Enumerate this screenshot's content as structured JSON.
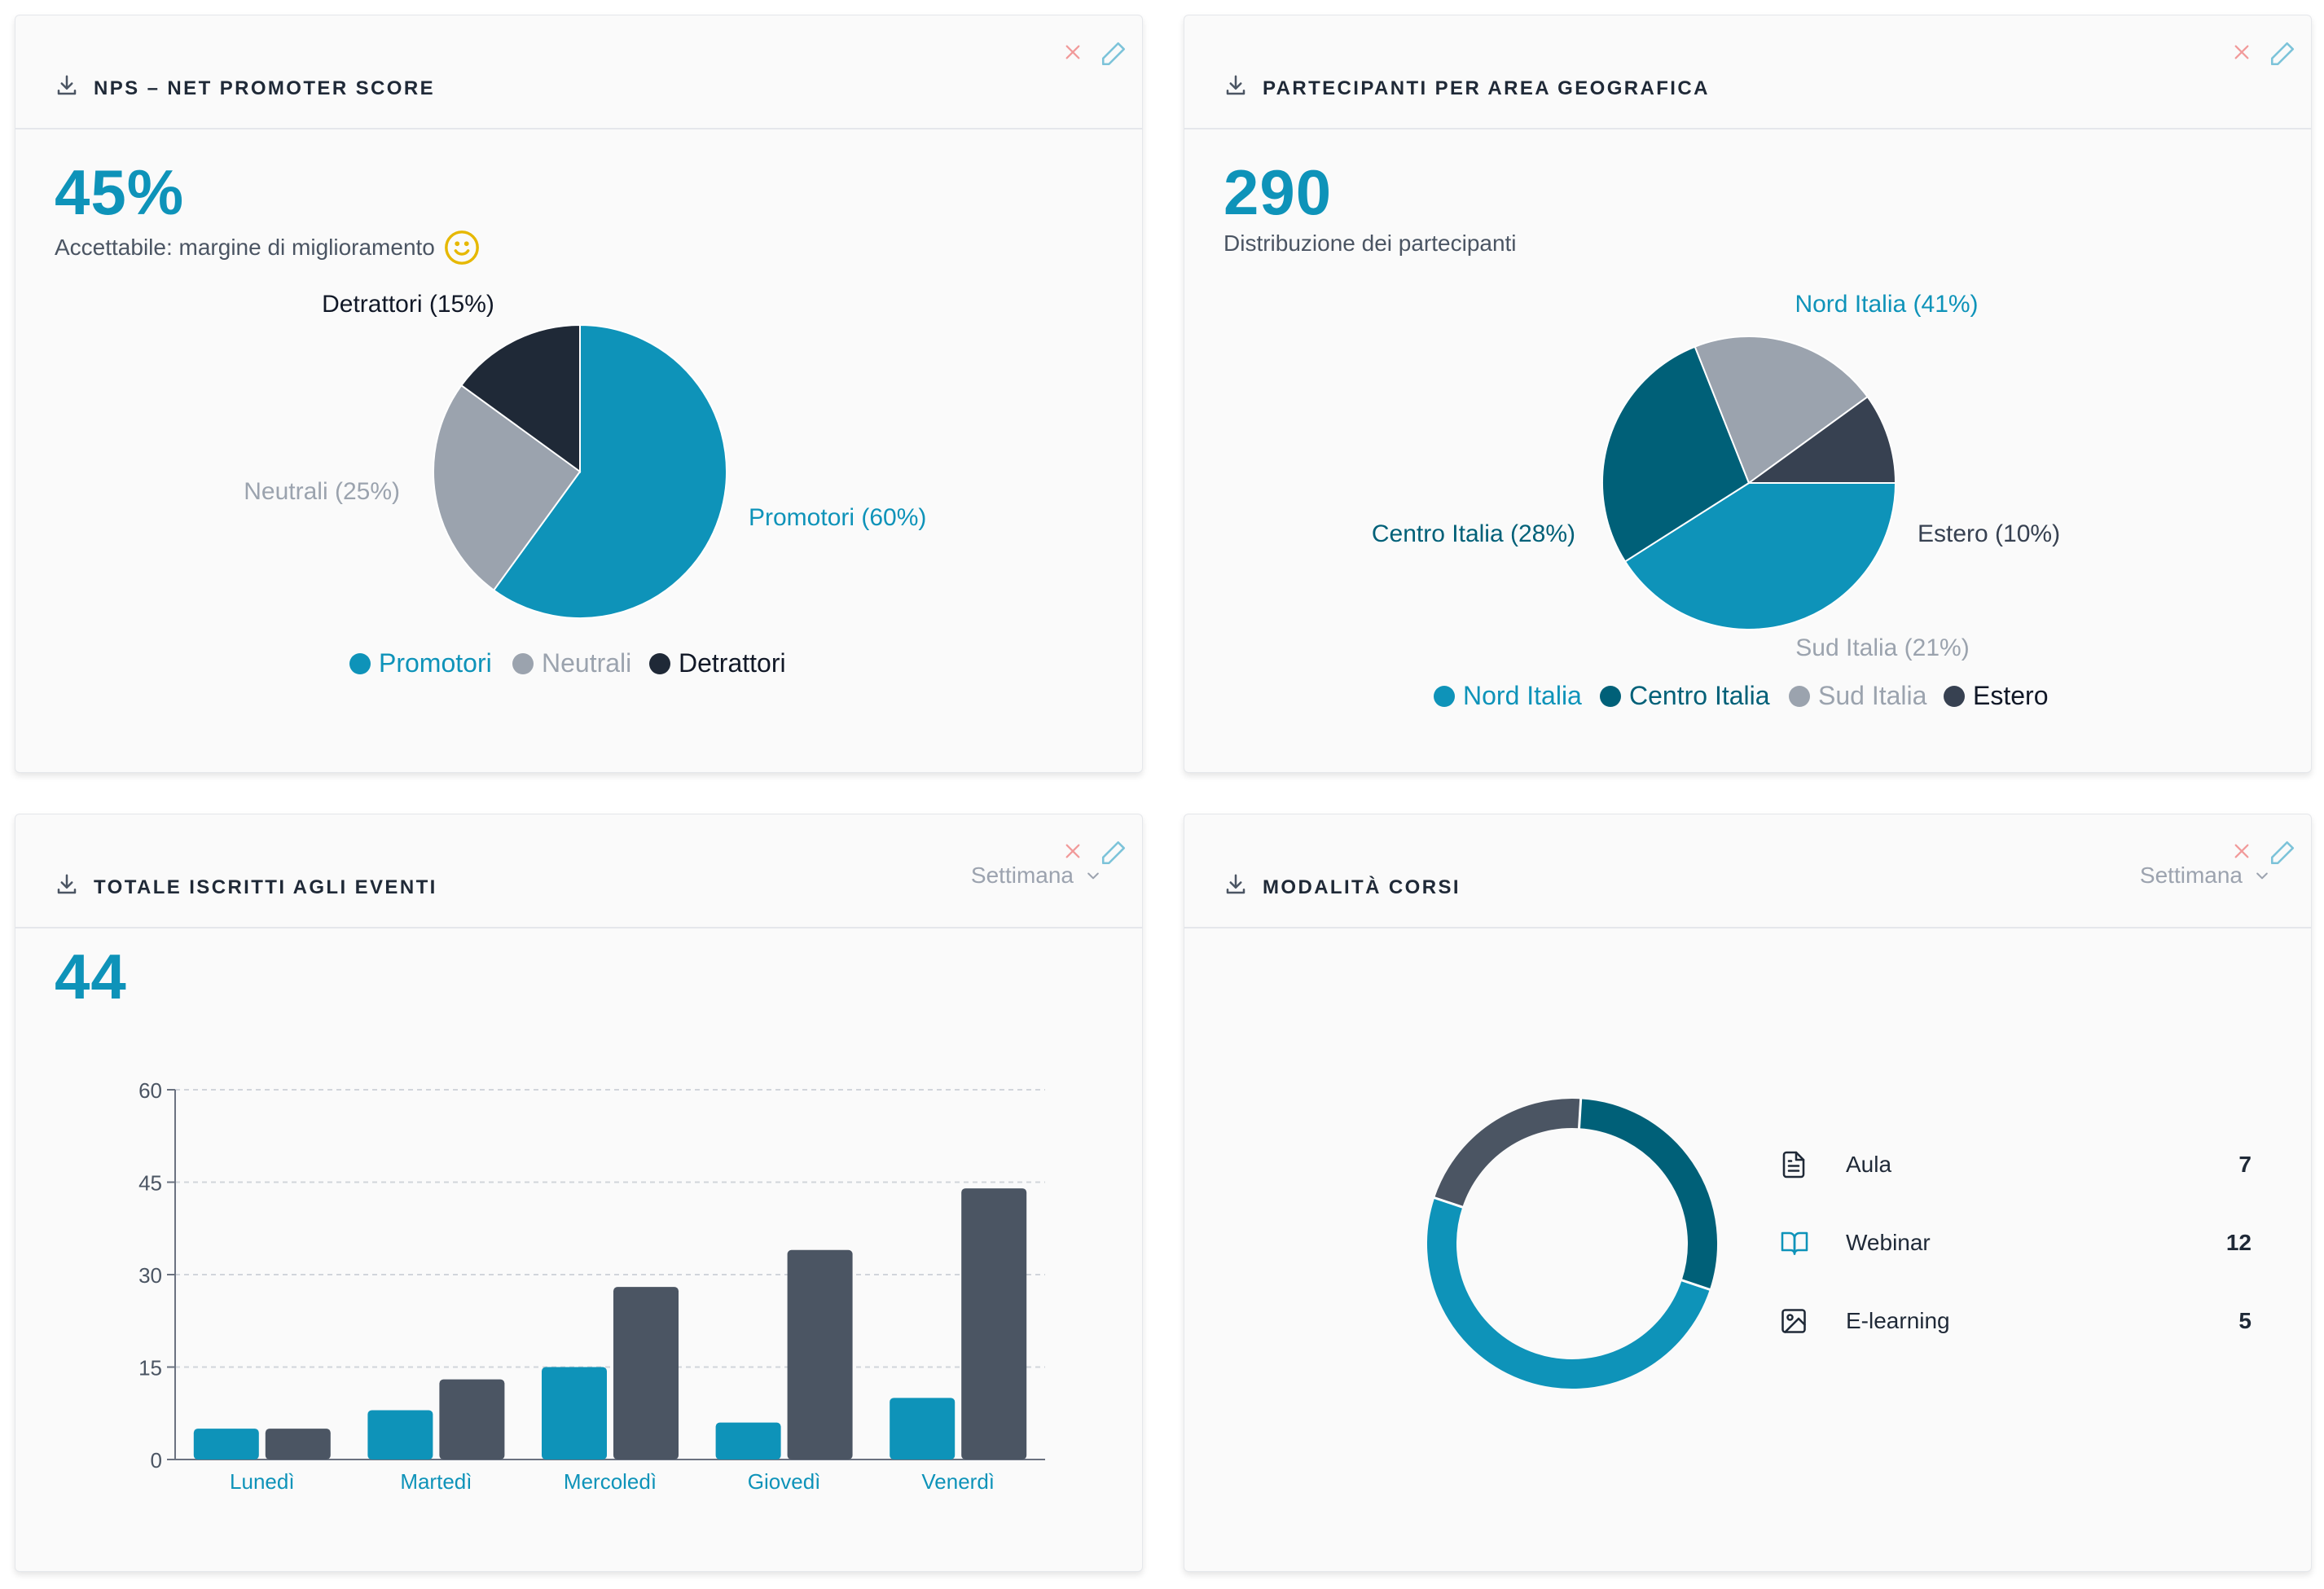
{
  "colors": {
    "accent": "#0e93b9",
    "teal_dark": "#006078",
    "slate": "#9ba3ae",
    "navy": "#1f2937",
    "charcoal": "#4b5563",
    "close": "#f19a9a",
    "edit": "#7cc3d9"
  },
  "nps": {
    "title": "NPS – NET PROMOTER SCORE",
    "value": "45%",
    "subtitle": "Accettabile: margine di miglioramento",
    "status_icon": "smile-icon",
    "chart_data": {
      "type": "pie",
      "slices": [
        {
          "name": "Promotori",
          "value": 60,
          "label": "Promotori (60%)",
          "color": "#0e93b9"
        },
        {
          "name": "Neutrali",
          "value": 25,
          "label": "Neutrali (25%)",
          "color": "#9ba3ae"
        },
        {
          "name": "Detrattori",
          "value": 15,
          "label": "Detrattori (15%)",
          "color": "#1f2937"
        }
      ],
      "legend": [
        "Promotori",
        "Neutrali",
        "Detrattori"
      ],
      "legend_position": "bottom"
    }
  },
  "geo": {
    "title": "PARTECIPANTI PER AREA GEOGRAFICA",
    "value": "290",
    "subtitle": "Distribuzione dei partecipanti",
    "chart_data": {
      "type": "pie",
      "slices": [
        {
          "name": "Nord Italia",
          "value": 41,
          "label": "Nord Italia (41%)",
          "color": "#0e93b9"
        },
        {
          "name": "Centro Italia",
          "value": 28,
          "label": "Centro Italia (28%)",
          "color": "#006078"
        },
        {
          "name": "Sud Italia",
          "value": 21,
          "label": "Sud Italia (21%)",
          "color": "#9ba3ae"
        },
        {
          "name": "Estero",
          "value": 10,
          "label": "Estero (10%)",
          "color": "#374151"
        }
      ],
      "legend": [
        "Nord Italia",
        "Centro Italia",
        "Sud Italia",
        "Estero"
      ],
      "legend_position": "bottom"
    }
  },
  "events": {
    "title": "TOTALE ISCRITTI AGLI EVENTI",
    "period": "Settimana",
    "value": "44",
    "chart_data": {
      "type": "bar",
      "categories": [
        "Lunedì",
        "Martedì",
        "Mercoledì",
        "Giovedì",
        "Venerdì"
      ],
      "series": [
        {
          "values": [
            5,
            8,
            15,
            6,
            10
          ],
          "color": "#0e93b9"
        },
        {
          "values": [
            5,
            13,
            28,
            34,
            44
          ],
          "color": "#4b5563"
        }
      ],
      "ylim": [
        0,
        60
      ],
      "yticks": [
        0,
        15,
        30,
        45,
        60
      ],
      "grid": true
    }
  },
  "modes": {
    "title": "MODALITÀ CORSI",
    "period": "Settimana",
    "chart_data": {
      "type": "pie",
      "donut": true,
      "slices": [
        {
          "name": "Aula",
          "value": 7,
          "color": "#006078"
        },
        {
          "name": "Webinar",
          "value": 12,
          "color": "#0e93b9"
        },
        {
          "name": "E-learning",
          "value": 5,
          "color": "#4b5563"
        }
      ]
    },
    "items": [
      {
        "label": "Aula",
        "count": "7",
        "icon": "document-icon"
      },
      {
        "label": "Webinar",
        "count": "12",
        "icon": "book-icon"
      },
      {
        "label": "E-learning",
        "count": "5",
        "icon": "image-icon"
      }
    ]
  }
}
